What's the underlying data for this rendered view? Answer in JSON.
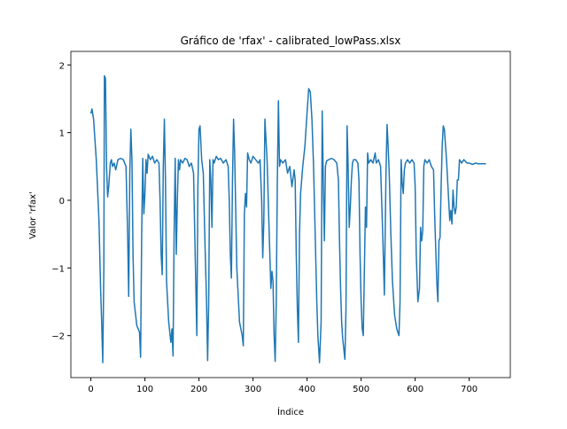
{
  "chart_data": {
    "type": "line",
    "title": "Gráfico de 'rfax' - calibrated_lowPass.xlsx",
    "xlabel": "Índice",
    "ylabel": "Valor 'rfax'",
    "xlim": [
      -37,
      776
    ],
    "ylim": [
      -2.62,
      2.2
    ],
    "xticks": [
      0,
      100,
      200,
      300,
      400,
      500,
      600,
      700
    ],
    "yticks": [
      {
        "value": -2,
        "label": "−2"
      },
      {
        "value": -1,
        "label": "−1"
      },
      0,
      1,
      2
    ],
    "x": [
      0,
      2,
      5,
      10,
      15,
      18,
      20,
      22,
      24,
      25,
      27,
      29,
      31,
      33,
      36,
      38,
      40,
      43,
      46,
      50,
      55,
      60,
      65,
      68,
      70,
      72,
      74,
      76,
      78,
      80,
      85,
      90,
      92,
      94,
      96,
      98,
      100,
      102,
      104,
      106,
      110,
      114,
      118,
      122,
      126,
      128,
      130,
      132,
      134,
      136,
      138,
      140,
      144,
      148,
      150,
      152,
      154,
      156,
      158,
      160,
      162,
      164,
      166,
      170,
      174,
      178,
      182,
      186,
      190,
      194,
      196,
      198,
      200,
      202,
      205,
      208,
      211,
      214,
      216,
      218,
      220,
      222,
      224,
      226,
      228,
      232,
      236,
      240,
      245,
      250,
      254,
      256,
      258,
      260,
      262,
      264,
      266,
      270,
      275,
      280,
      282,
      284,
      286,
      288,
      290,
      293,
      296,
      300,
      305,
      310,
      313,
      316,
      318,
      320,
      322,
      324,
      326,
      330,
      333,
      335,
      337,
      339,
      341,
      343,
      345,
      347,
      349,
      351,
      355,
      360,
      364,
      368,
      372,
      376,
      378,
      380,
      382,
      384,
      386,
      388,
      392,
      396,
      400,
      403,
      406,
      409,
      412,
      415,
      418,
      420,
      423,
      426,
      428,
      430,
      432,
      434,
      436,
      440,
      445,
      450,
      455,
      458,
      460,
      462,
      464,
      466,
      468,
      470,
      472,
      474,
      476,
      478,
      480,
      482,
      484,
      486,
      490,
      494,
      496,
      498,
      500,
      502,
      504,
      508,
      510,
      512,
      514,
      518,
      522,
      526,
      528,
      532,
      536,
      540,
      543,
      546,
      548,
      550,
      552,
      555,
      558,
      562,
      566,
      570,
      572,
      574,
      576,
      578,
      580,
      582,
      586,
      590,
      594,
      598,
      600,
      602,
      605,
      608,
      610,
      612,
      614,
      616,
      618,
      622,
      626,
      630,
      634,
      636,
      638,
      640,
      642,
      644,
      646,
      648,
      650,
      652,
      654,
      658,
      662,
      664,
      666,
      668,
      670,
      672,
      674,
      676,
      678,
      680,
      682,
      686,
      690,
      696,
      700,
      706,
      712,
      716,
      731
    ],
    "series": [
      {
        "name": "rfax",
        "color": "#1f77b4",
        "values": [
          1.28,
          1.35,
          1.2,
          0.6,
          -0.3,
          -1.3,
          -1.8,
          -2.4,
          -1.0,
          1.84,
          1.8,
          0.5,
          0.05,
          0.2,
          0.55,
          0.6,
          0.5,
          0.55,
          0.45,
          0.6,
          0.62,
          0.6,
          0.5,
          -0.5,
          -1.42,
          0.4,
          1.05,
          0.6,
          -0.8,
          -1.5,
          -1.85,
          -1.95,
          -2.32,
          -0.5,
          0.62,
          -0.2,
          0.1,
          0.6,
          0.4,
          0.68,
          0.6,
          0.65,
          0.55,
          0.6,
          0.55,
          0.0,
          -0.8,
          -1.1,
          0.5,
          1.2,
          0.3,
          -1.2,
          -1.8,
          -2.1,
          -1.9,
          -2.3,
          -0.5,
          0.62,
          -0.8,
          0.0,
          0.6,
          0.45,
          0.6,
          0.55,
          0.62,
          0.6,
          0.5,
          0.55,
          0.4,
          -1.2,
          -2.0,
          0.2,
          1.05,
          1.1,
          0.6,
          0.4,
          -0.6,
          -1.5,
          -2.37,
          -1.5,
          0.6,
          0.3,
          -0.4,
          0.6,
          0.55,
          0.65,
          0.6,
          0.62,
          0.55,
          0.6,
          0.5,
          0.0,
          -0.8,
          -1.15,
          0.3,
          1.2,
          0.7,
          -1.0,
          -1.8,
          -2.0,
          -2.15,
          -0.2,
          0.1,
          -0.1,
          0.7,
          0.6,
          0.55,
          0.65,
          0.6,
          0.55,
          0.6,
          0.0,
          -0.85,
          -0.3,
          1.2,
          0.9,
          0.6,
          -0.5,
          -1.3,
          -1.05,
          -1.2,
          -2.0,
          -2.38,
          -1.5,
          0.3,
          1.47,
          0.5,
          0.6,
          0.55,
          0.6,
          0.4,
          0.5,
          0.2,
          0.45,
          0.3,
          -0.8,
          -1.6,
          -2.1,
          -0.5,
          0.1,
          0.5,
          0.8,
          1.3,
          1.65,
          1.6,
          1.2,
          0.5,
          -0.5,
          -1.5,
          -2.0,
          -2.4,
          -1.8,
          1.32,
          0.3,
          -0.6,
          0.5,
          0.58,
          0.6,
          0.62,
          0.6,
          0.55,
          0.3,
          -0.6,
          -1.3,
          -1.8,
          -2.05,
          -2.2,
          -2.35,
          -1.6,
          1.1,
          0.5,
          -0.4,
          -0.1,
          0.3,
          0.55,
          0.6,
          0.6,
          0.55,
          0.3,
          -0.8,
          -1.5,
          -1.9,
          -2.0,
          -0.1,
          -0.4,
          0.7,
          0.55,
          0.6,
          0.55,
          0.7,
          0.55,
          0.6,
          0.5,
          -0.5,
          -1.4,
          0.4,
          1.12,
          0.8,
          0.4,
          -0.5,
          -1.2,
          -1.7,
          -1.9,
          -2.0,
          -1.5,
          0.6,
          0.25,
          0.1,
          0.45,
          0.55,
          0.6,
          0.55,
          0.6,
          0.55,
          0.2,
          -0.8,
          -1.5,
          -1.3,
          -0.4,
          -0.6,
          -0.45,
          0.5,
          0.6,
          0.55,
          0.6,
          0.5,
          0.45,
          -0.2,
          -0.7,
          -1.2,
          -1.5,
          -0.6,
          -0.55,
          0.2,
          0.8,
          1.1,
          1.05,
          0.6,
          0.0,
          -0.3,
          -0.15,
          -0.35,
          0.15,
          -0.1,
          -0.2,
          -0.1,
          0.3,
          0.3,
          0.6,
          0.55,
          0.6,
          0.55,
          0.55,
          0.53,
          0.55,
          0.54,
          0.54
        ]
      }
    ]
  }
}
